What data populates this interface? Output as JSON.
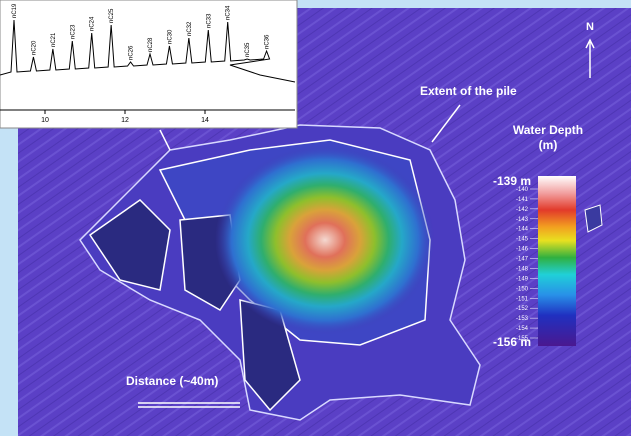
{
  "map": {
    "north": "N",
    "extent_label": "Extent of the pile",
    "legend_title": "Water Depth (m)",
    "scale_label": "Distance (~40m)",
    "colorbar": {
      "top_label": "-139 m",
      "bottom_label": "-156 m",
      "ticks": [
        -140,
        -141,
        -142,
        -143,
        -144,
        -145,
        -146,
        -147,
        -148,
        -149,
        -150,
        -151,
        -152,
        -153,
        -154,
        -155
      ]
    }
  },
  "inset": {
    "x_ticks": [
      10,
      12,
      14
    ],
    "peaks": [
      "nC19",
      "nC20",
      "nC21",
      "nC23",
      "nC24",
      "nC25",
      "nC26",
      "nC28",
      "nC30",
      "nC32",
      "nC33",
      "nC34",
      "nC35",
      "nC36"
    ]
  }
}
